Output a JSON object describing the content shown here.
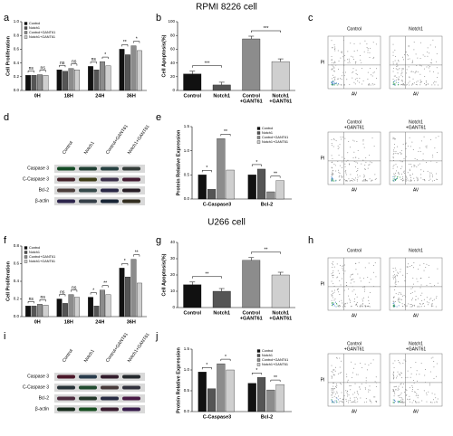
{
  "sections": [
    "RPMI 8226 cell",
    "U266 cell"
  ],
  "panel_labels": [
    "a",
    "b",
    "c",
    "d",
    "e",
    "f",
    "g",
    "h",
    "i",
    "j"
  ],
  "chart_data": [
    {
      "type": "grouped-bar",
      "y_label": "Cell Proliferation",
      "legend": "upper left",
      "categories": [
        "0H",
        "18H",
        "24H",
        "36H"
      ],
      "series": [
        {
          "name": "Control",
          "color": "#111111",
          "values": [
            0.22,
            0.3,
            0.35,
            0.6
          ]
        },
        {
          "name": "Notch1",
          "color": "#555555",
          "values": [
            0.22,
            0.28,
            0.3,
            0.52
          ]
        },
        {
          "name": "Control+GANT61",
          "color": "#8c8c8c",
          "values": [
            0.23,
            0.32,
            0.42,
            0.65
          ]
        },
        {
          "name": "Notch1+GANT61",
          "color": "#cfcfcf",
          "values": [
            0.22,
            0.3,
            0.36,
            0.58
          ]
        }
      ],
      "annotations": [
        [
          "ns",
          "ns"
        ],
        [
          "ns",
          "ns"
        ],
        [
          "ns",
          "*"
        ],
        [
          "**",
          "*"
        ]
      ],
      "ylim": [
        0,
        1
      ],
      "yticks": [
        {
          "value": 0,
          "label": "0.0"
        },
        0.2,
        0.4,
        0.6,
        0.8,
        {
          "value": 1,
          "label": "1.0"
        }
      ]
    },
    {
      "type": "bar",
      "y_label": "Cell Apoptosis(%)",
      "categories": [
        [
          "Control"
        ],
        [
          "Notch1"
        ],
        [
          "Control",
          "+GANT61"
        ],
        [
          "Notch1",
          "+GANT61"
        ]
      ],
      "values": [
        24,
        8,
        75,
        42
      ],
      "colors": [
        "#111111",
        "#555555",
        "#8c8c8c",
        "#cfcfcf"
      ],
      "annotations": [
        "***",
        "***"
      ],
      "ylim": [
        0,
        100
      ],
      "yticks": [
        0,
        20,
        40,
        60,
        80,
        100
      ]
    },
    {
      "type": "grouped-bar",
      "y_label": "Protein Relative Expression",
      "legend": "upper right",
      "categories": [
        "C-Caspase3",
        "Bcl-2"
      ],
      "series": [
        {
          "name": "Control",
          "color": "#111111",
          "values": [
            0.5,
            0.5
          ]
        },
        {
          "name": "Notch1",
          "color": "#555555",
          "values": [
            0.2,
            0.62
          ]
        },
        {
          "name": "Control+GANT61",
          "color": "#8c8c8c",
          "values": [
            1.25,
            0.15
          ]
        },
        {
          "name": "Notch1+GANT61",
          "color": "#cfcfcf",
          "values": [
            0.6,
            0.38
          ]
        }
      ],
      "annotations": [
        [
          "*",
          "**"
        ],
        [
          "*",
          "**"
        ]
      ],
      "ylim": [
        0,
        1.5
      ],
      "yticks": [
        {
          "value": 0,
          "label": "0.0"
        },
        0.5,
        {
          "value": 1,
          "label": "1.0"
        },
        1.5
      ]
    },
    {
      "type": "grouped-bar",
      "y_label": "Cell Proliferation",
      "legend": "upper left",
      "categories": [
        "0H",
        "18H",
        "24H",
        "36H"
      ],
      "series": [
        {
          "name": "Control",
          "color": "#111111",
          "values": [
            0.12,
            0.2,
            0.22,
            0.55
          ]
        },
        {
          "name": "Notch1",
          "color": "#555555",
          "values": [
            0.12,
            0.15,
            0.12,
            0.45
          ]
        },
        {
          "name": "Control+GANT61",
          "color": "#8c8c8c",
          "values": [
            0.14,
            0.25,
            0.3,
            0.65
          ]
        },
        {
          "name": "Notch1+GANT61",
          "color": "#cfcfcf",
          "values": [
            0.13,
            0.22,
            0.25,
            0.38
          ]
        }
      ],
      "annotations": [
        [
          "ns",
          "ns"
        ],
        [
          "ns",
          "ns"
        ],
        [
          "*",
          "**"
        ],
        [
          "*",
          "**"
        ]
      ],
      "ylim": [
        0,
        0.8
      ],
      "yticks": [
        {
          "value": 0,
          "label": "0.0"
        },
        0.2,
        0.4,
        0.6,
        0.8
      ]
    },
    {
      "type": "bar",
      "y_label": "Cell Apoptosis(%)",
      "categories": [
        [
          "Control"
        ],
        [
          "Notch1"
        ],
        [
          "Control",
          "+GANT61"
        ],
        [
          "Notch1",
          "+GANT61"
        ]
      ],
      "values": [
        14,
        10,
        29,
        20
      ],
      "colors": [
        "#111111",
        "#555555",
        "#8c8c8c",
        "#cfcfcf"
      ],
      "annotations": [
        "**",
        "**"
      ],
      "ylim": [
        0,
        40
      ],
      "yticks": [
        0,
        10,
        20,
        30,
        40
      ]
    },
    {
      "type": "grouped-bar",
      "y_label": "Protein Relative Expression",
      "legend": "upper right",
      "categories": [
        "C-Caspase3",
        "Bcl-2"
      ],
      "series": [
        {
          "name": "Control",
          "color": "#111111",
          "values": [
            0.95,
            0.68
          ]
        },
        {
          "name": "Notch1",
          "color": "#555555",
          "values": [
            0.55,
            0.82
          ]
        },
        {
          "name": "Control+GANT61",
          "color": "#8c8c8c",
          "values": [
            1.15,
            0.52
          ]
        },
        {
          "name": "Notch1+GANT61",
          "color": "#cfcfcf",
          "values": [
            1.0,
            0.65
          ]
        }
      ],
      "annotations": [
        [
          "*",
          "*"
        ],
        [
          "*",
          "**"
        ]
      ],
      "ylim": [
        0,
        1.5
      ],
      "yticks": [
        {
          "value": 0,
          "label": "0.0"
        },
        0.5,
        {
          "value": 1,
          "label": "1.0"
        },
        1.5
      ]
    }
  ],
  "blots": [
    {
      "rows": [
        "Caspase 3",
        "C-Caspase 3",
        "Bcl-2",
        "β-actin"
      ],
      "columns": [
        "Control",
        "Notch1",
        "Control+GANT61",
        "Notch1+GANT61"
      ]
    },
    {
      "rows": [
        "Caspase 3",
        "C-Caspase 3",
        "Bcl-2",
        "β-actin"
      ],
      "columns": [
        "Control",
        "Notch1",
        "Control+GANT61",
        "Notch1+GANT61"
      ]
    }
  ],
  "flow": [
    {
      "plots": [
        [
          "Control"
        ],
        [
          "Notch1"
        ],
        [
          "Control",
          "+GANT61"
        ],
        [
          "Notch1",
          "+GANT61"
        ]
      ],
      "x_label": "AV",
      "y_label": "PI"
    },
    {
      "plots": [
        [
          "Control"
        ],
        [
          "Notch1"
        ],
        [
          "Control",
          "+GANT61"
        ],
        [
          "Notch1",
          "+GANT61"
        ]
      ],
      "x_label": "AV",
      "y_label": "PI"
    }
  ]
}
